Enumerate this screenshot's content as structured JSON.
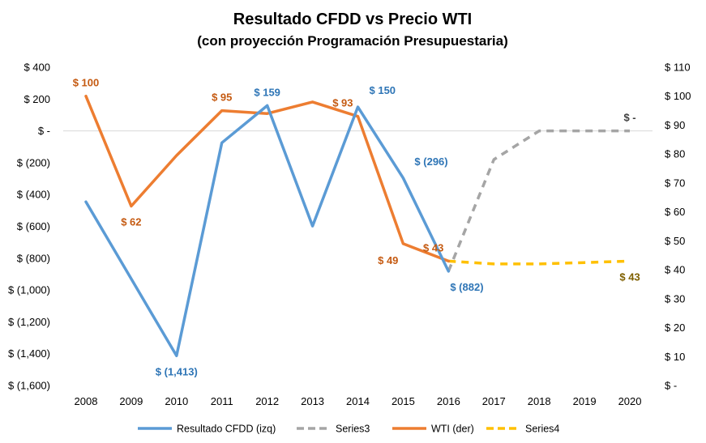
{
  "chart_data": {
    "type": "line",
    "title": "Resultado CFDD vs Precio WTI",
    "subtitle": "(con proyección Programación Presupuestaria)",
    "categories": [
      "2008",
      "2009",
      "2010",
      "2011",
      "2012",
      "2013",
      "2014",
      "2015",
      "2016",
      "2017",
      "2018",
      "2019",
      "2020"
    ],
    "y_left": {
      "ylim": [
        -1600,
        400
      ],
      "ticks": [
        400,
        200,
        0,
        -200,
        -400,
        -600,
        -800,
        -1000,
        -1200,
        -1400,
        -1600
      ],
      "tick_labels": [
        "$ 400",
        "$ 200",
        "$ -",
        "$ (200)",
        "$ (400)",
        "$ (600)",
        "$ (800)",
        "$ (1,000)",
        "$ (1,200)",
        "$ (1,400)",
        "$ (1,600)"
      ]
    },
    "y_right": {
      "ylim": [
        0,
        110
      ],
      "ticks": [
        110,
        100,
        90,
        80,
        70,
        60,
        50,
        40,
        30,
        20,
        10,
        0
      ],
      "tick_labels": [
        "$ 110",
        "$ 100",
        "$ 90",
        "$ 80",
        "$ 70",
        "$ 60",
        "$ 50",
        "$ 40",
        "$ 30",
        "$ 20",
        "$ 10",
        "$ -"
      ]
    },
    "series": [
      {
        "name": "Resultado CFDD (izq)",
        "axis": "left",
        "color": "#5B9BD5",
        "dash": "solid",
        "values": [
          -446,
          -930,
          -1413,
          -75,
          159,
          -598,
          150,
          -296,
          -882,
          null,
          null,
          null,
          null
        ],
        "labels": [
          {
            "index": 2,
            "text": "$ (1,413)",
            "pos": "below"
          },
          {
            "index": 4,
            "text": "$ 159",
            "pos": "above"
          },
          {
            "index": 6,
            "text": "$ 150",
            "pos": "right"
          },
          {
            "index": 7,
            "text": "$ (296)",
            "pos": "right"
          },
          {
            "index": 8,
            "text": "$ (882)",
            "pos": "below-right"
          }
        ]
      },
      {
        "name": "Series3",
        "axis": "left",
        "color": "#A5A5A5",
        "dash": "dashed",
        "values": [
          null,
          null,
          null,
          null,
          null,
          null,
          null,
          null,
          -882,
          -180,
          0,
          0,
          0
        ],
        "labels": [
          {
            "index": 12,
            "text": "$ -",
            "pos": "above"
          }
        ]
      },
      {
        "name": "WTI (der)",
        "axis": "right",
        "color": "#ED7D31",
        "dash": "solid",
        "values": [
          100,
          62,
          79.5,
          95,
          94,
          98,
          93,
          49,
          43,
          null,
          null,
          null,
          null
        ],
        "labels": [
          {
            "index": 0,
            "text": "$ 100",
            "pos": "above"
          },
          {
            "index": 1,
            "text": "$ 62",
            "pos": "below"
          },
          {
            "index": 3,
            "text": "$ 95",
            "pos": "above"
          },
          {
            "index": 6,
            "text": "$ 93",
            "pos": "above-left"
          },
          {
            "index": 7,
            "text": "$ 49",
            "pos": "below-left"
          },
          {
            "index": 8,
            "text": "$ 43",
            "pos": "above-left"
          }
        ]
      },
      {
        "name": "Series4",
        "axis": "right",
        "color": "#FFC000",
        "dash": "dashed",
        "values": [
          null,
          null,
          null,
          null,
          null,
          null,
          null,
          null,
          43,
          42,
          42,
          42.5,
          43
        ],
        "labels": [
          {
            "index": 12,
            "text": "$ 43",
            "pos": "below"
          }
        ]
      }
    ],
    "label_colors": {
      "Resultado CFDD (izq)": "#2E75B6",
      "Series3": "#404040",
      "WTI (der)": "#C55A11",
      "Series4": "#7F6000"
    },
    "legend": [
      "Resultado CFDD (izq)",
      "Series3",
      "WTI (der)",
      "Series4"
    ],
    "legend_position": "bottom",
    "grid": false
  }
}
